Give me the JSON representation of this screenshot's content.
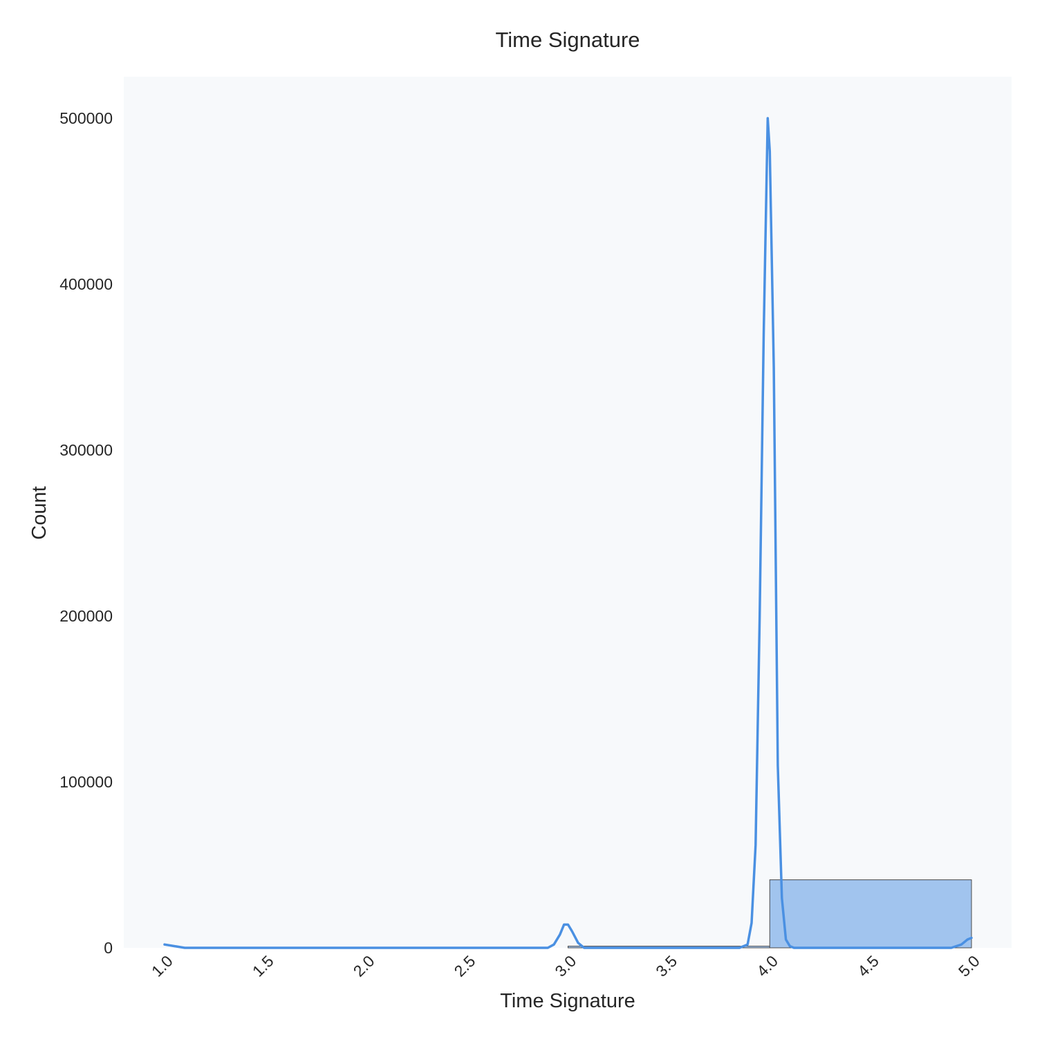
{
  "chart_data": {
    "type": "histogram",
    "title": "Time Signature",
    "xlabel": "Time Signature",
    "ylabel": "Count",
    "xlim": [
      0.8,
      5.2
    ],
    "ylim": [
      0,
      525000
    ],
    "x_ticks": [
      1.0,
      1.5,
      2.0,
      2.5,
      3.0,
      3.5,
      4.0,
      4.5,
      5.0
    ],
    "x_tick_labels": [
      "1.0",
      "1.5",
      "2.0",
      "2.5",
      "3.0",
      "3.5",
      "4.0",
      "4.5",
      "5.0"
    ],
    "x_tick_rotation_deg": -45,
    "y_ticks": [
      0,
      100000,
      200000,
      300000,
      400000,
      500000
    ],
    "y_tick_labels": [
      "0",
      "100000",
      "200000",
      "300000",
      "400000",
      "500000"
    ],
    "grid": false,
    "bins": [
      {
        "x0": 1.0,
        "x1": 1.5,
        "count": 0
      },
      {
        "x0": 1.5,
        "x1": 2.0,
        "count": 0
      },
      {
        "x0": 2.0,
        "x1": 2.5,
        "count": 0
      },
      {
        "x0": 2.5,
        "x1": 3.0,
        "count": 0
      },
      {
        "x0": 3.0,
        "x1": 4.0,
        "count": 1000
      },
      {
        "x0": 4.0,
        "x1": 5.0,
        "count": 41000
      }
    ],
    "kde": {
      "x": [
        1.0,
        1.05,
        1.1,
        1.2,
        1.5,
        2.0,
        2.5,
        2.9,
        2.93,
        2.96,
        2.98,
        3.0,
        3.02,
        3.05,
        3.08,
        3.2,
        3.5,
        3.85,
        3.89,
        3.91,
        3.93,
        3.95,
        3.97,
        3.99,
        4.0,
        4.02,
        4.04,
        4.06,
        4.08,
        4.1,
        4.12,
        4.2,
        4.5,
        4.9,
        4.95,
        4.98,
        5.0
      ],
      "y": [
        2000,
        1000,
        0,
        0,
        0,
        0,
        0,
        0,
        2000,
        8000,
        14000,
        14000,
        10000,
        3000,
        0,
        0,
        0,
        0,
        2000,
        15000,
        62000,
        200000,
        370000,
        500000,
        480000,
        350000,
        110000,
        30000,
        5000,
        1000,
        0,
        0,
        0,
        0,
        2000,
        5000,
        6000
      ]
    },
    "colors": {
      "bar_fill": "#a1c4ee",
      "bar_edge": "#4a4a4a",
      "kde_line": "#4a90e2",
      "plot_background": "#f7f9fb"
    }
  }
}
